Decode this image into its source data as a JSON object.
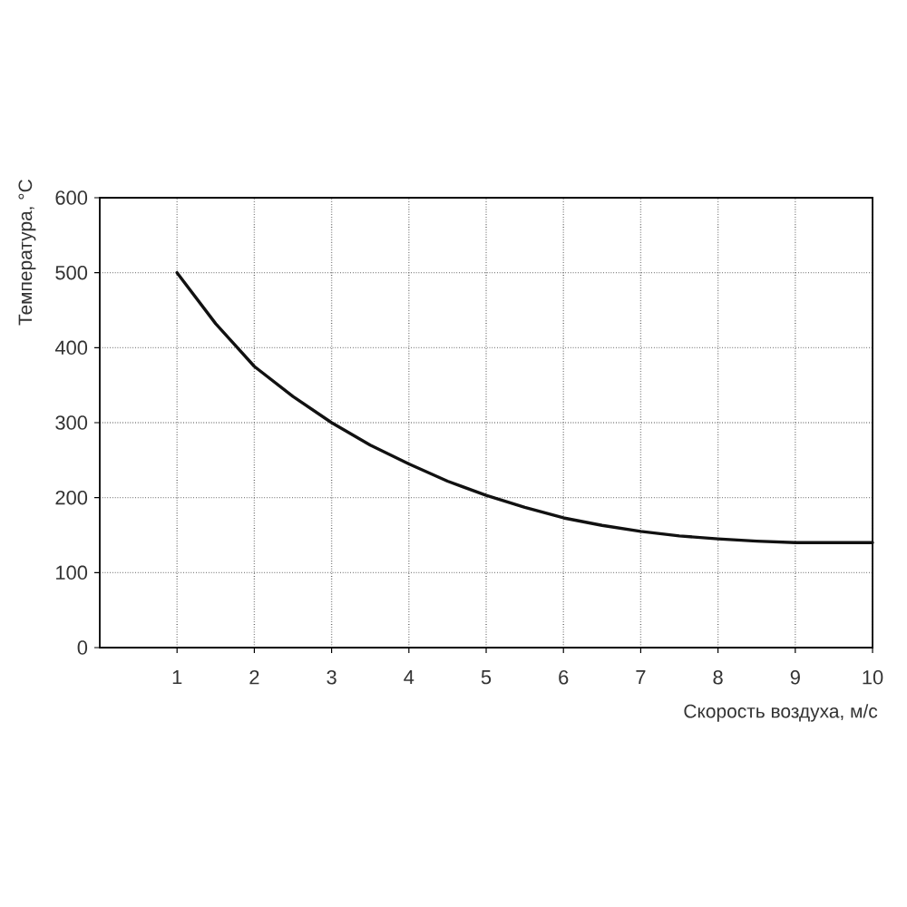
{
  "chart_data": {
    "type": "line",
    "xlabel": "Скорость воздуха, м/с",
    "ylabel": "Температура, °C",
    "x": [
      1,
      1.5,
      2,
      2.5,
      3,
      3.5,
      4,
      4.5,
      5,
      5.5,
      6,
      6.5,
      7,
      7.5,
      8,
      8.5,
      9,
      9.5,
      10
    ],
    "series": [
      {
        "color": "#111111",
        "values": [
          500,
          432,
          375,
          335,
          300,
          270,
          245,
          222,
          203,
          187,
          173,
          163,
          155,
          149,
          145,
          142,
          140,
          140,
          140
        ]
      }
    ],
    "xlim": [
      0,
      10
    ],
    "ylim": [
      0,
      600
    ],
    "xticks": [
      1,
      2,
      3,
      4,
      5,
      6,
      7,
      8,
      9,
      10
    ],
    "yticks": [
      0,
      100,
      200,
      300,
      400,
      500,
      600
    ],
    "grid": true,
    "marker": "none",
    "line_style": "solid"
  }
}
